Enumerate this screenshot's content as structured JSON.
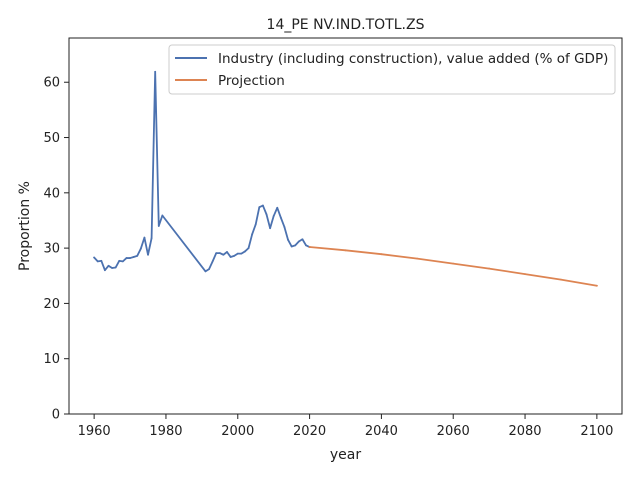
{
  "chart_data": {
    "type": "line",
    "title": "14_PE NV.IND.TOTL.ZS",
    "xlabel": "year",
    "ylabel": "Proportion %",
    "xlim": [
      1953,
      2107
    ],
    "ylim": [
      0,
      68
    ],
    "xticks": [
      1960,
      1980,
      2000,
      2020,
      2040,
      2060,
      2080,
      2100
    ],
    "yticks": [
      0,
      10,
      20,
      30,
      40,
      50,
      60
    ],
    "grid": false,
    "legend_position": "top-right",
    "series": [
      {
        "name": "Industry (including construction), value added (% of GDP)",
        "color": "#4c72b0",
        "x": [
          1960,
          1961,
          1962,
          1963,
          1964,
          1965,
          1966,
          1967,
          1968,
          1969,
          1970,
          1971,
          1972,
          1973,
          1974,
          1975,
          1976,
          1977,
          1978,
          1979,
          1991,
          1992,
          1993,
          1994,
          1995,
          1996,
          1997,
          1998,
          1999,
          2000,
          2001,
          2002,
          2003,
          2004,
          2005,
          2006,
          2007,
          2008,
          2009,
          2010,
          2011,
          2012,
          2013,
          2014,
          2015,
          2016,
          2017,
          2018,
          2019,
          2020
        ],
        "y": [
          28.3,
          27.6,
          27.7,
          26.0,
          26.8,
          26.4,
          26.5,
          27.7,
          27.6,
          28.2,
          28.2,
          28.4,
          28.6,
          29.9,
          31.9,
          28.8,
          31.8,
          61.9,
          34.0,
          35.9,
          25.8,
          26.2,
          27.6,
          29.1,
          29.1,
          28.8,
          29.3,
          28.4,
          28.6,
          29.0,
          29.0,
          29.4,
          30.0,
          32.5,
          34.3,
          37.4,
          37.7,
          36.1,
          33.6,
          35.8,
          37.3,
          35.5,
          33.8,
          31.5,
          30.3,
          30.5,
          31.2,
          31.6,
          30.5,
          30.2
        ]
      },
      {
        "name": "Projection",
        "color": "#dd8452",
        "x": [
          2020,
          2030,
          2040,
          2050,
          2060,
          2070,
          2080,
          2090,
          2100
        ],
        "y": [
          30.2,
          29.6,
          28.9,
          28.1,
          27.2,
          26.3,
          25.3,
          24.3,
          23.2
        ]
      }
    ]
  }
}
